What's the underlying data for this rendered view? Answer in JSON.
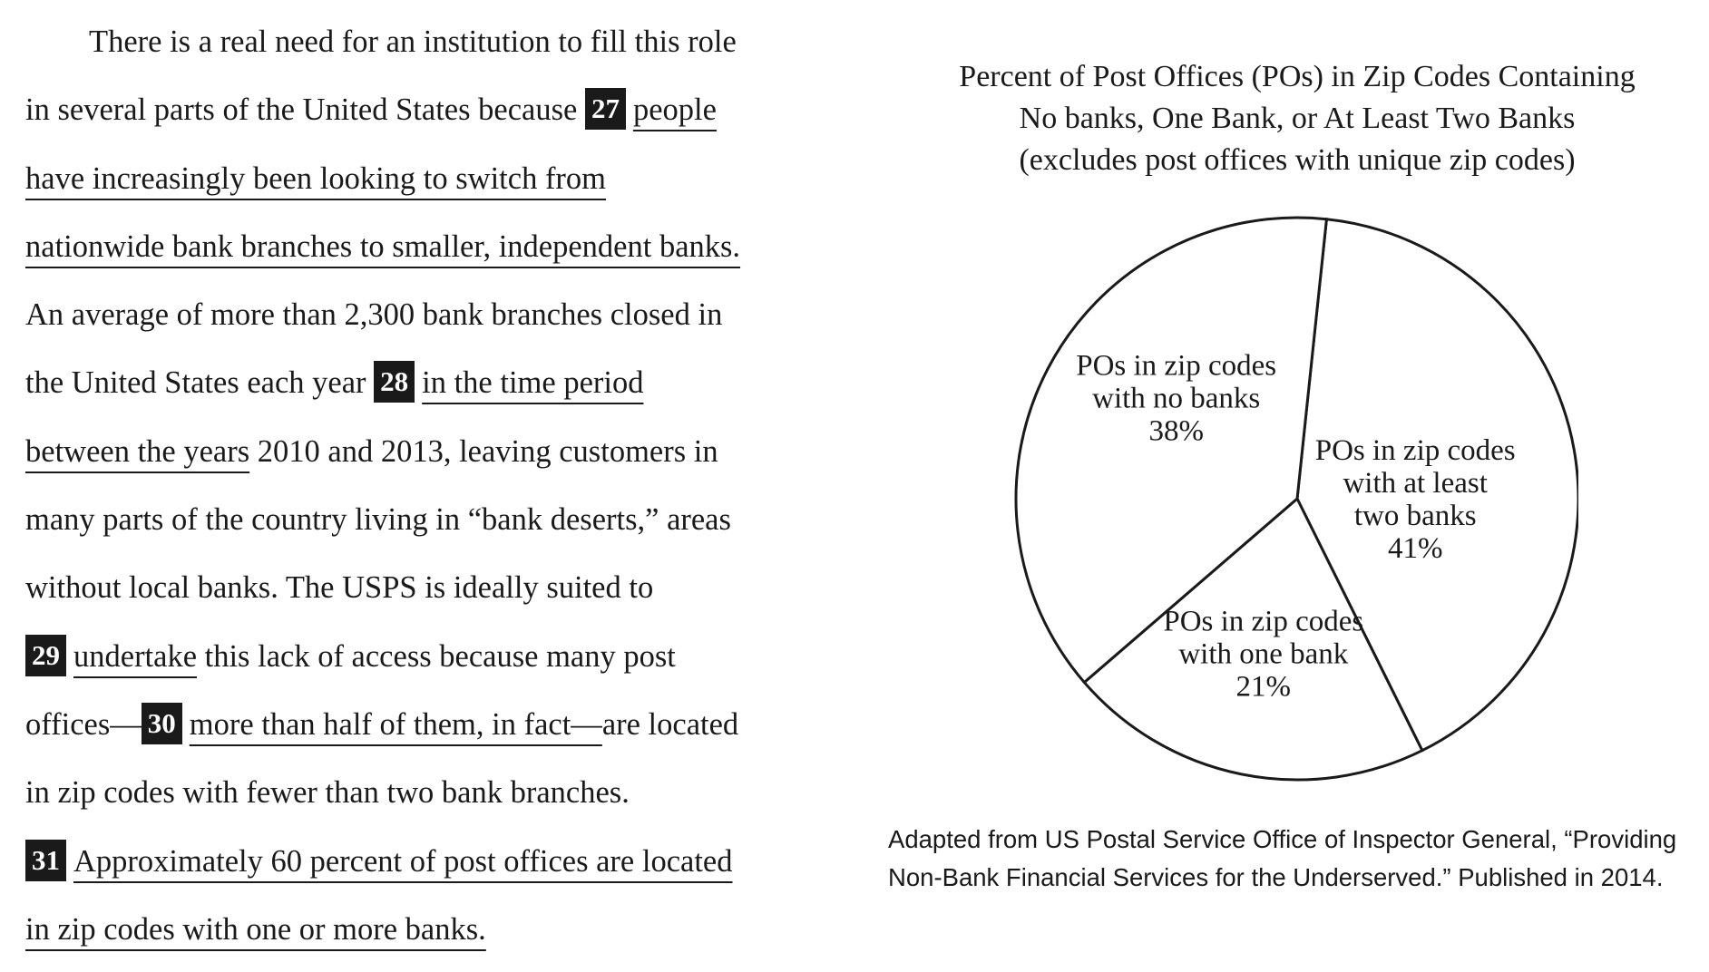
{
  "passage": {
    "l1": "There is a real need for an institution to fill this role",
    "l2a": "in several parts of the United States because",
    "q27": "27",
    "l2b": "people",
    "l3": "have increasingly been looking to switch from",
    "l4": "nationwide bank branches to smaller, independent banks.",
    "l5": "An average of more than 2,300 bank branches closed in",
    "l6a": "the United States each year",
    "q28": "28",
    "l6b": "in the time period",
    "l7a": "between the years",
    "l7b": " 2010 and 2013, leaving customers in",
    "l8": "many parts of the country living in “bank deserts,” areas",
    "l9": "without local banks. The USPS is ideally suited to",
    "q29": "29",
    "l10a": "undertake",
    "l10b": " this lack of access because many post",
    "l11a": "offices—",
    "q30": "30",
    "l11b": "more than half of them, in fact—",
    "l11c": "are located",
    "l12": "in zip codes with fewer than two bank branches.",
    "q31": "31",
    "l13": "Approximately 60 percent of post offices are located",
    "l14": "in zip codes with one or more banks."
  },
  "chart_data": {
    "type": "pie",
    "title": [
      "Percent of Post Offices (POs) in Zip Codes Containing",
      "No banks, One Bank, or At Least Two Banks",
      "(excludes post offices with unique zip codes)"
    ],
    "slices": [
      {
        "label": [
          "POs in zip codes",
          "with at least",
          "two banks",
          "41%"
        ],
        "value": 41
      },
      {
        "label": [
          "POs in zip codes",
          "with one bank",
          "21%"
        ],
        "value": 21
      },
      {
        "label": [
          "POs in zip codes",
          "with no banks",
          "38%"
        ],
        "value": 38
      }
    ],
    "stroke_color": "#1a1a1a",
    "fill_color": "#ffffff"
  },
  "source": {
    "line1": "Adapted from US Postal Service Office of Inspector General, “Providing",
    "line2": "Non-Bank Financial Services for the Underserved.” Published in 2014."
  }
}
